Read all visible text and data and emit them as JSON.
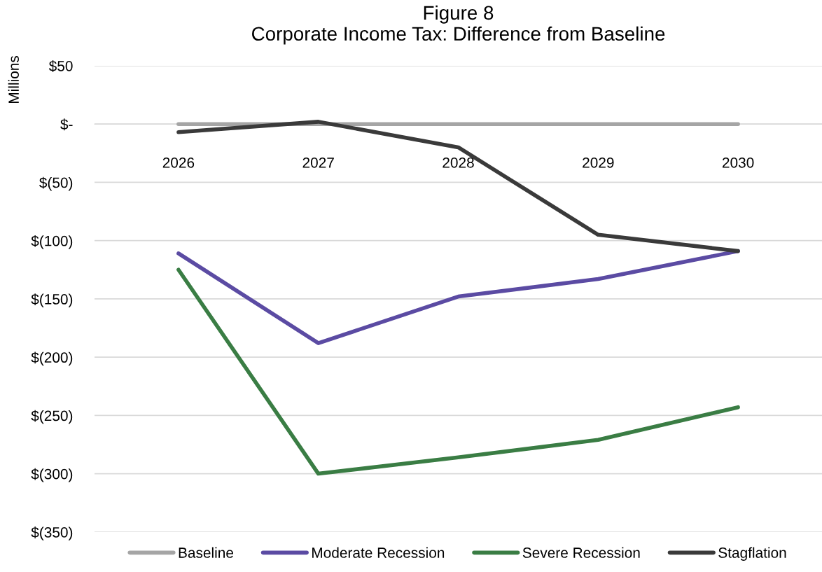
{
  "chart_data": {
    "type": "line",
    "title": "Figure 8\nCorporate Income Tax: Difference from Baseline",
    "ylabel": "Millions",
    "categories": [
      "2026",
      "2027",
      "2028",
      "2029",
      "2030"
    ],
    "series": [
      {
        "name": "Baseline",
        "color": "#a5a5a5",
        "values": [
          0,
          0,
          0,
          0,
          0
        ]
      },
      {
        "name": "Moderate Recession",
        "color": "#5b4ba3",
        "values": [
          -111,
          -188,
          -148,
          -133,
          -109
        ]
      },
      {
        "name": "Severe Recession",
        "color": "#3a7d44",
        "values": [
          -125,
          -300,
          -286,
          -271,
          -243
        ]
      },
      {
        "name": "Stagflation",
        "color": "#3a3a3a",
        "values": [
          -7,
          2,
          -20,
          -95,
          -109
        ]
      }
    ],
    "ylim": [
      -350,
      50
    ],
    "yticks": [
      {
        "value": 50,
        "label": "$50"
      },
      {
        "value": 0,
        "label": "$-"
      },
      {
        "value": -50,
        "label": "$(50)"
      },
      {
        "value": -100,
        "label": "$(100)"
      },
      {
        "value": -150,
        "label": "$(150)"
      },
      {
        "value": -200,
        "label": "$(200)"
      },
      {
        "value": -250,
        "label": "$(250)"
      },
      {
        "value": -300,
        "label": "$(300)"
      },
      {
        "value": -350,
        "label": "$(350)"
      }
    ],
    "grid": "y",
    "legend": "bottom",
    "marker": "none",
    "line_style": "solid"
  }
}
